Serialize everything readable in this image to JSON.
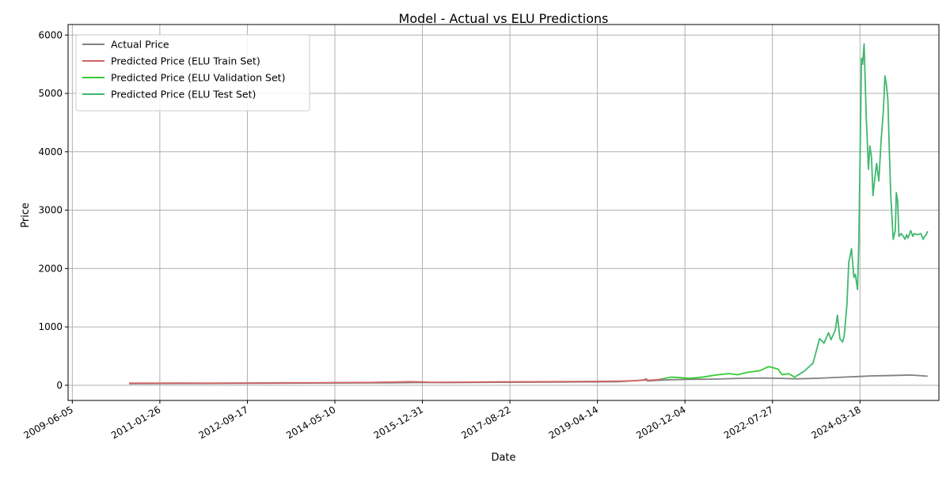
{
  "chart_data": {
    "type": "line",
    "title": "Model - Actual vs ELU Predictions",
    "xlabel": "Date",
    "ylabel": "Price",
    "grid": true,
    "legend_position": "top-left",
    "xlim": [
      "2009-05-07",
      "2025-09-10"
    ],
    "ylim": [
      -260,
      6180
    ],
    "x_ticks": [
      "2009-06-05",
      "2011-01-26",
      "2012-09-17",
      "2014-05-10",
      "2015-12-31",
      "2017-08-22",
      "2019-04-14",
      "2020-12-04",
      "2022-07-27",
      "2024-03-18"
    ],
    "y_ticks": [
      0,
      1000,
      2000,
      3000,
      4000,
      5000,
      6000
    ],
    "series": [
      {
        "name": "Actual Price",
        "color": "#808080",
        "x": [
          "2010-06-29",
          "2011-06-01",
          "2012-06-01",
          "2013-06-01",
          "2014-06-01",
          "2015-06-01",
          "2016-01-01",
          "2016-06-01",
          "2017-06-01",
          "2018-06-01",
          "2019-06-01",
          "2019-09-01",
          "2020-03-10",
          "2020-03-25",
          "2020-06-01",
          "2020-09-01",
          "2021-01-01",
          "2021-06-01",
          "2022-01-01",
          "2022-06-01",
          "2022-10-01",
          "2023-01-01",
          "2023-06-01",
          "2023-12-01",
          "2024-03-01",
          "2024-06-01",
          "2024-09-01",
          "2024-12-01",
          "2025-03-01",
          "2025-06-25"
        ],
        "y": [
          28,
          30,
          32,
          35,
          38,
          42,
          48,
          45,
          50,
          55,
          58,
          62,
          90,
          75,
          85,
          95,
          100,
          105,
          120,
          125,
          118,
          110,
          120,
          140,
          150,
          160,
          165,
          170,
          175,
          155
        ]
      },
      {
        "name": "Predicted Price (ELU Train Set)",
        "color": "#d16565",
        "x": [
          "2010-06-29",
          "2011-01-01",
          "2011-06-01",
          "2012-01-01",
          "2012-06-01",
          "2013-01-01",
          "2013-06-01",
          "2014-01-01",
          "2014-06-01",
          "2015-01-01",
          "2015-06-01",
          "2015-10-01",
          "2016-01-01",
          "2016-03-01",
          "2016-06-01",
          "2017-01-01",
          "2017-06-01",
          "2018-01-01",
          "2018-06-01",
          "2019-01-01",
          "2019-06-01",
          "2019-10-01",
          "2020-01-15",
          "2020-03-01",
          "2020-03-12",
          "2020-03-25",
          "2020-06-01",
          "2020-07-01"
        ],
        "y": [
          35,
          36,
          38,
          35,
          38,
          40,
          42,
          44,
          46,
          48,
          55,
          62,
          57,
          50,
          52,
          55,
          58,
          60,
          62,
          65,
          68,
          72,
          80,
          95,
          110,
          85,
          95,
          110
        ]
      },
      {
        "name": "Predicted Price (ELU Validation Set)",
        "color": "#33cc33",
        "x": [
          "2020-07-01",
          "2020-09-01",
          "2020-11-01",
          "2021-01-01",
          "2021-03-01",
          "2021-05-01",
          "2021-07-01",
          "2021-10-01",
          "2021-12-01",
          "2022-02-01",
          "2022-05-01",
          "2022-07-01",
          "2022-09-01",
          "2022-10-01",
          "2022-11-15",
          "2023-01-01"
        ],
        "y": [
          110,
          140,
          130,
          120,
          130,
          150,
          175,
          200,
          180,
          220,
          250,
          320,
          280,
          180,
          200,
          130
        ]
      },
      {
        "name": "Predicted Price (ELU Test Set)",
        "color": "#40b870",
        "x": [
          "2023-01-01",
          "2023-03-01",
          "2023-05-01",
          "2023-06-15",
          "2023-07-15",
          "2023-08-15",
          "2023-09-01",
          "2023-10-01",
          "2023-10-15",
          "2023-11-01",
          "2023-11-20",
          "2023-12-01",
          "2023-12-20",
          "2024-01-01",
          "2024-01-20",
          "2024-02-05",
          "2024-02-15",
          "2024-03-01",
          "2024-03-10",
          "2024-03-18",
          "2024-03-28",
          "2024-04-05",
          "2024-04-15",
          "2024-04-30",
          "2024-05-15",
          "2024-05-25",
          "2024-06-05",
          "2024-06-15",
          "2024-06-28",
          "2024-07-10",
          "2024-07-25",
          "2024-08-10",
          "2024-08-25",
          "2024-09-05",
          "2024-09-15",
          "2024-09-25",
          "2024-10-05",
          "2024-10-15",
          "2024-10-25",
          "2024-11-01",
          "2024-11-05",
          "2024-11-15",
          "2024-11-22",
          "2024-12-01",
          "2024-12-10",
          "2024-12-25",
          "2025-01-10",
          "2025-01-20",
          "2025-02-01",
          "2025-02-10",
          "2025-03-01",
          "2025-03-15",
          "2025-03-25",
          "2025-04-15",
          "2025-05-10",
          "2025-05-25",
          "2025-06-05",
          "2025-06-15",
          "2025-06-25"
        ],
        "y": [
          150,
          240,
          380,
          800,
          720,
          900,
          780,
          950,
          1200,
          800,
          740,
          850,
          1400,
          2100,
          2340,
          1850,
          1900,
          1640,
          2450,
          3800,
          5600,
          5500,
          5850,
          4600,
          3700,
          4100,
          3900,
          3250,
          3550,
          3800,
          3500,
          4200,
          4700,
          5300,
          5150,
          4900,
          4000,
          3250,
          2800,
          2500,
          2550,
          2650,
          3300,
          3150,
          2550,
          2600,
          2550,
          2500,
          2580,
          2520,
          2650,
          2550,
          2600,
          2580,
          2600,
          2500,
          2550,
          2580,
          2640
        ]
      }
    ]
  }
}
